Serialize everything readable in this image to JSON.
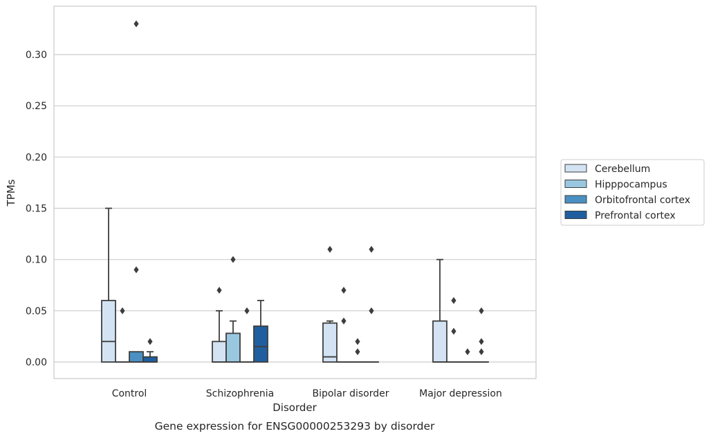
{
  "caption": "Gene expression for ENSG00000253293 by disorder",
  "colors": {
    "Cerebellum": "#d3e3f3",
    "Hipppocampus": "#9ac7e0",
    "Orbitofrontal cortex": "#4a90c2",
    "Prefrontal cortex": "#1f5f9f",
    "edge": "#3d3d3d",
    "grid": "#cccccc"
  },
  "chart_data": {
    "type": "box",
    "title": "",
    "xlabel": "Disorder",
    "ylabel": "TPMs",
    "ylim": [
      -0.016,
      0.347
    ],
    "yticks": [
      0.0,
      0.05,
      0.1,
      0.15,
      0.2,
      0.25,
      0.3
    ],
    "ytick_labels": [
      "0.00",
      "0.05",
      "0.10",
      "0.15",
      "0.20",
      "0.25",
      "0.30"
    ],
    "categories": [
      "Control",
      "Schizophrenia",
      "Bipolar disorder",
      "Major depression"
    ],
    "grid": "horizontal",
    "legend_position": "right",
    "series": [
      {
        "name": "Cerebellum",
        "boxes": [
          {
            "q1": 0.0,
            "median": 0.02,
            "q3": 0.06,
            "whislo": 0.0,
            "whishi": 0.15,
            "fliers": []
          },
          {
            "q1": 0.0,
            "median": 0.0,
            "q3": 0.02,
            "whislo": 0.0,
            "whishi": 0.05,
            "fliers": [
              0.07
            ]
          },
          {
            "q1": 0.0,
            "median": 0.005,
            "q3": 0.038,
            "whislo": 0.0,
            "whishi": 0.04,
            "fliers": [
              0.11
            ]
          },
          {
            "q1": 0.0,
            "median": 0.0,
            "q3": 0.04,
            "whislo": 0.0,
            "whishi": 0.1,
            "fliers": []
          }
        ]
      },
      {
        "name": "Hipppocampus",
        "boxes": [
          {
            "q1": 0.0,
            "median": 0.0,
            "q3": 0.0,
            "whislo": 0.0,
            "whishi": 0.0,
            "fliers": [
              0.05
            ]
          },
          {
            "q1": 0.0,
            "median": 0.0,
            "q3": 0.028,
            "whislo": 0.0,
            "whishi": 0.04,
            "fliers": [
              0.1
            ]
          },
          {
            "q1": 0.0,
            "median": 0.0,
            "q3": 0.0,
            "whislo": 0.0,
            "whishi": 0.0,
            "fliers": [
              0.04,
              0.07
            ]
          },
          {
            "q1": 0.0,
            "median": 0.0,
            "q3": 0.0,
            "whislo": 0.0,
            "whishi": 0.0,
            "fliers": [
              0.03,
              0.06
            ]
          }
        ]
      },
      {
        "name": "Orbitofrontal cortex",
        "boxes": [
          {
            "q1": 0.0,
            "median": 0.0,
            "q3": 0.01,
            "whislo": 0.0,
            "whishi": 0.01,
            "fliers": [
              0.09,
              0.33
            ]
          },
          {
            "q1": 0.0,
            "median": 0.0,
            "q3": 0.0,
            "whislo": 0.0,
            "whishi": 0.0,
            "fliers": [
              0.05
            ]
          },
          {
            "q1": 0.0,
            "median": 0.0,
            "q3": 0.0,
            "whislo": 0.0,
            "whishi": 0.0,
            "fliers": [
              0.01,
              0.02
            ]
          },
          {
            "q1": 0.0,
            "median": 0.0,
            "q3": 0.0,
            "whislo": 0.0,
            "whishi": 0.0,
            "fliers": [
              0.01
            ]
          }
        ]
      },
      {
        "name": "Prefrontal cortex",
        "boxes": [
          {
            "q1": 0.0,
            "median": 0.0,
            "q3": 0.005,
            "whislo": 0.0,
            "whishi": 0.01,
            "fliers": [
              0.02
            ]
          },
          {
            "q1": 0.0,
            "median": 0.015,
            "q3": 0.035,
            "whislo": 0.0,
            "whishi": 0.06,
            "fliers": []
          },
          {
            "q1": 0.0,
            "median": 0.0,
            "q3": 0.0,
            "whislo": 0.0,
            "whishi": 0.0,
            "fliers": [
              0.05,
              0.11
            ]
          },
          {
            "q1": 0.0,
            "median": 0.0,
            "q3": 0.0,
            "whislo": 0.0,
            "whishi": 0.0,
            "fliers": [
              0.01,
              0.02,
              0.05
            ]
          }
        ]
      }
    ]
  }
}
